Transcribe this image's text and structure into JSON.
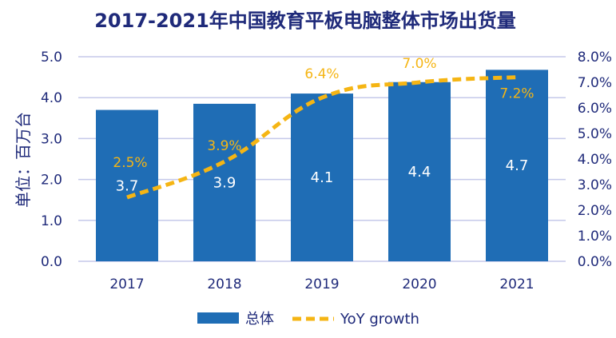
{
  "chart_data": {
    "type": "bar+line",
    "title": "2017-2021年中国教育平板电脑整体市场出货量",
    "ylabel": "单位：百万台",
    "categories": [
      "2017",
      "2018",
      "2019",
      "2020",
      "2021"
    ],
    "series": [
      {
        "name": "总体",
        "type": "bar",
        "axis": "left",
        "values": [
          3.7,
          3.9,
          4.1,
          4.4,
          4.7
        ],
        "labels": [
          "3.7",
          "3.9",
          "4.1",
          "4.4",
          "4.7"
        ],
        "color": "#1f6db5"
      },
      {
        "name": "YoY growth",
        "type": "line",
        "style": "dashed",
        "axis": "right",
        "values": [
          2.5,
          3.9,
          6.4,
          7.0,
          7.2
        ],
        "labels": [
          "2.5%",
          "3.9%",
          "6.4%",
          "7.0%",
          "7.2%"
        ],
        "color": "#f5b514"
      }
    ],
    "bar_values_on_axis": [
      3.7,
      3.85,
      4.1,
      4.38,
      4.68
    ],
    "ylim_left": [
      0,
      5
    ],
    "ylim_right": [
      0,
      8
    ],
    "yticks_left": [
      "0.0",
      "1.0",
      "2.0",
      "3.0",
      "4.0",
      "5.0"
    ],
    "yticks_right": [
      "0.0%",
      "1.0%",
      "2.0%",
      "3.0%",
      "4.0%",
      "5.0%",
      "6.0%",
      "7.0%",
      "8.0%"
    ],
    "grid": true,
    "gridColor": "#c5c9ea",
    "legend_position": "bottom"
  }
}
